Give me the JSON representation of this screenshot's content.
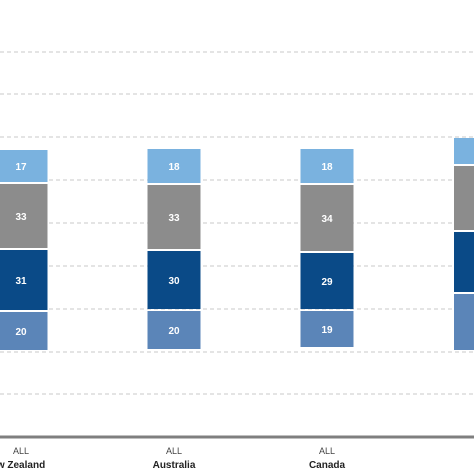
{
  "chart_data": {
    "type": "bar",
    "stacked": true,
    "categories": [
      {
        "group": "ALL",
        "name": "New Zealand"
      },
      {
        "group": "ALL",
        "name": "Australia"
      },
      {
        "group": "ALL",
        "name": "Canada"
      },
      {
        "group": "",
        "name": ""
      }
    ],
    "category_display": [
      "w Zealand",
      "Australia",
      "Canada",
      ""
    ],
    "series": [
      {
        "values": [
          20,
          20,
          19,
          null
        ],
        "color": "#5b85b8"
      },
      {
        "values": [
          31,
          30,
          29,
          null
        ],
        "color": "#0a4a87"
      },
      {
        "values": [
          33,
          33,
          34,
          null
        ],
        "color": "#8c8c8c"
      },
      {
        "values": [
          17,
          18,
          18,
          null
        ],
        "color": "#7ab2df"
      }
    ],
    "gridlines": "dashed",
    "legend": "none"
  }
}
